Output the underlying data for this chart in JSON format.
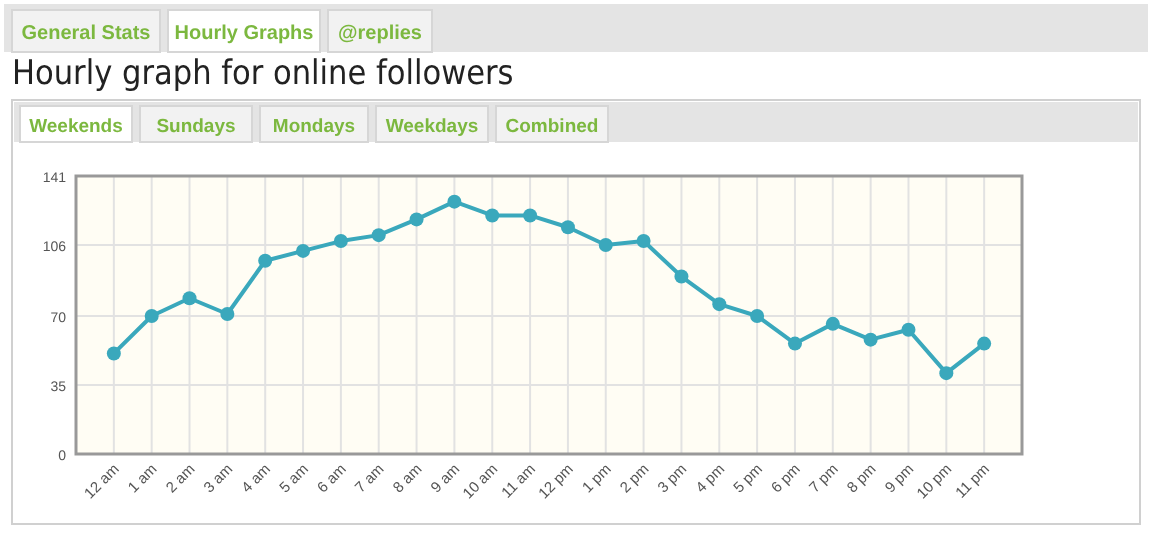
{
  "chart_data": {
    "type": "line",
    "title": "Hourly graph for online followers",
    "annotations": [
      "General Stats",
      "Hourly Graphs",
      "@replies",
      "Weekends",
      "Sundays",
      "Mondays",
      "Weekdays",
      "Combined"
    ],
    "categories": [
      "12 am",
      "1 am",
      "2 am",
      "3 am",
      "4 am",
      "5 am",
      "6 am",
      "7 am",
      "8 am",
      "9 am",
      "10 am",
      "11 am",
      "12 pm",
      "1 pm",
      "2 pm",
      "3 pm",
      "4 pm",
      "5 pm",
      "6 pm",
      "7 pm",
      "8 pm",
      "9 pm",
      "10 pm",
      "11 pm"
    ],
    "series": [
      {
        "color": "#3aa8bc",
        "values": [
          51,
          70,
          79,
          71,
          98,
          103,
          108,
          111,
          119,
          128,
          121,
          121,
          115,
          106,
          108,
          90,
          76,
          70,
          56,
          66,
          58,
          63,
          41,
          56
        ]
      }
    ],
    "ylim": [
      0,
      141
    ],
    "yticks": [
      0,
      35,
      70,
      106,
      141
    ],
    "grid": true,
    "marker": "circle",
    "line_style": "solid"
  }
}
